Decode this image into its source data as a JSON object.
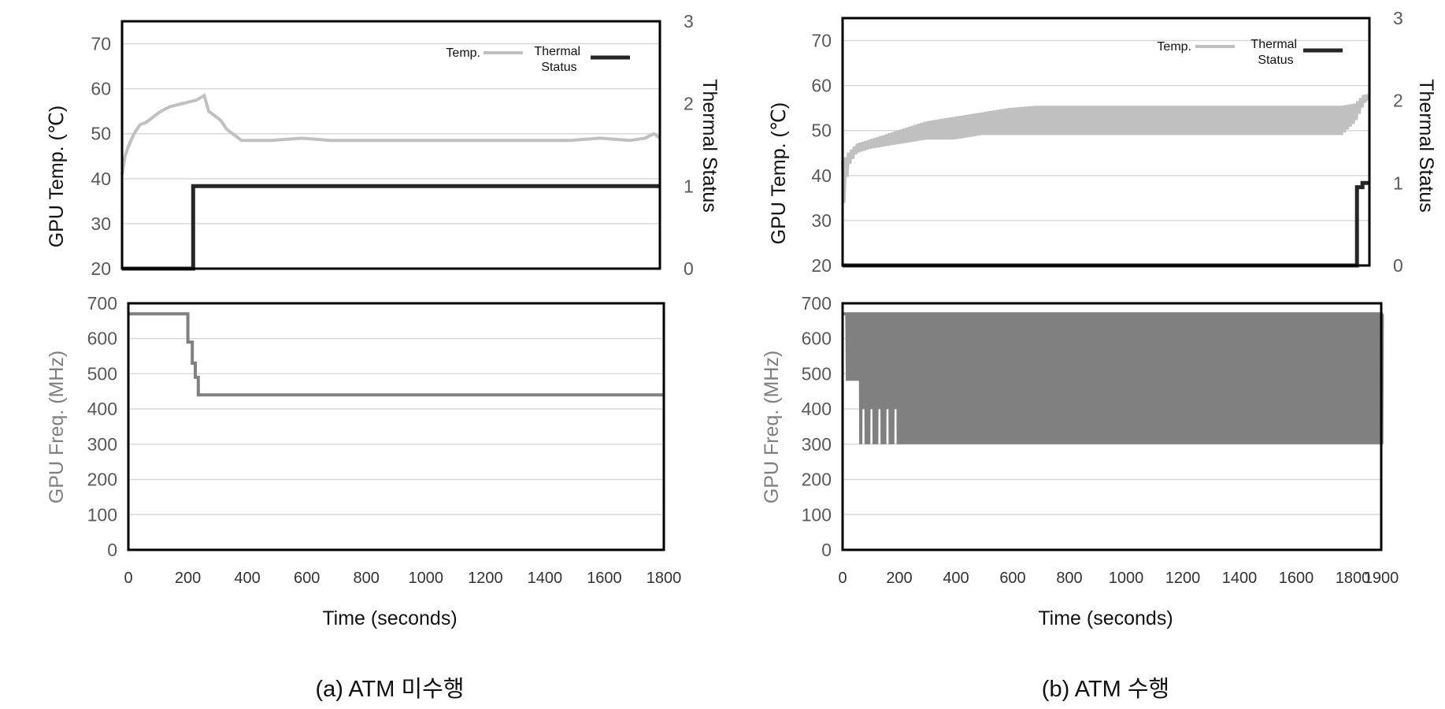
{
  "captions": {
    "left": "(a) ATM 미수행",
    "right": "(b) ATM 수행"
  },
  "colors": {
    "temp": "#c0c0c0",
    "thermal": "#262626",
    "freq": "#808080",
    "grid": "#d9d9d9",
    "frame": "#000000"
  },
  "chart_data": [
    {
      "id": "a-temp",
      "type": "line",
      "xlabel": "",
      "ylabel": "GPU Temp. (℃)",
      "y2label": "Thermal Status",
      "ylim": [
        20,
        75
      ],
      "yticks": [
        20,
        30,
        40,
        50,
        60,
        70
      ],
      "y2lim": [
        0,
        3
      ],
      "y2ticks": [
        0,
        1,
        2,
        3
      ],
      "xlim": [
        0,
        1800
      ],
      "grid": true,
      "legend_position": "top-right",
      "legend": [
        "Temp.",
        "Thermal Status"
      ],
      "series": [
        {
          "name": "Temp.",
          "axis": "left",
          "x": [
            0,
            10,
            20,
            40,
            60,
            80,
            100,
            130,
            160,
            190,
            220,
            250,
            275,
            290,
            310,
            330,
            350,
            380,
            400,
            450,
            500,
            600,
            700,
            800,
            900,
            1000,
            1100,
            1200,
            1300,
            1400,
            1500,
            1600,
            1700,
            1750,
            1780,
            1800
          ],
          "y": [
            41,
            45,
            47,
            50,
            52,
            52.5,
            53.5,
            55,
            56,
            56.5,
            57,
            57.5,
            58.5,
            55,
            54,
            53,
            51,
            49.5,
            48.5,
            48.5,
            48.5,
            49,
            48.5,
            48.5,
            48.5,
            48.5,
            48.5,
            48.5,
            48.5,
            48.5,
            48.5,
            49,
            48.5,
            49,
            50,
            49
          ]
        },
        {
          "name": "Thermal Status",
          "axis": "right",
          "step": true,
          "x": [
            0,
            238,
            238,
            1800
          ],
          "y": [
            0,
            0,
            1,
            1
          ]
        }
      ]
    },
    {
      "id": "a-freq",
      "type": "line",
      "xlabel": "Time (seconds)",
      "ylabel": "GPU Freq. (MHz)",
      "ylim": [
        0,
        700
      ],
      "yticks": [
        0,
        100,
        200,
        300,
        400,
        500,
        600,
        700
      ],
      "xlim": [
        0,
        1800
      ],
      "xticks": [
        0,
        200,
        400,
        600,
        800,
        1000,
        1200,
        1400,
        1600,
        1800
      ],
      "grid": true,
      "series": [
        {
          "name": "",
          "step": true,
          "x": [
            0,
            200,
            200,
            215,
            215,
            225,
            225,
            235,
            235,
            1800
          ],
          "y": [
            670,
            670,
            590,
            590,
            530,
            530,
            490,
            490,
            440,
            440
          ]
        }
      ]
    },
    {
      "id": "b-temp",
      "type": "line",
      "xlabel": "",
      "ylabel": "GPU Temp. (℃)",
      "y2label": "Thermal Status",
      "ylim": [
        20,
        75
      ],
      "yticks": [
        20,
        30,
        40,
        50,
        60,
        70
      ],
      "y2lim": [
        0,
        3
      ],
      "y2ticks": [
        0,
        1,
        2,
        3
      ],
      "xlim": [
        0,
        1900
      ],
      "grid": true,
      "legend_position": "top-right",
      "legend": [
        "Temp.",
        "Thermal Status"
      ],
      "series": [
        {
          "name": "Temp.",
          "axis": "left",
          "pattern": "oscillating",
          "x": [
            0,
            20,
            50,
            100,
            200,
            300,
            400,
            500,
            600,
            700,
            800,
            900,
            1000,
            1200,
            1400,
            1600,
            1800,
            1850,
            1880,
            1900
          ],
          "y_low": [
            31,
            42,
            45,
            46,
            47,
            48,
            48,
            49,
            49,
            49,
            49,
            49,
            49,
            49,
            49,
            49,
            49,
            52,
            56,
            57
          ],
          "y_high": [
            43,
            45,
            47,
            48,
            50,
            52,
            53,
            54,
            55,
            55.5,
            55.5,
            55.5,
            55.5,
            55.5,
            55.5,
            55.5,
            55.5,
            56,
            58,
            58
          ]
        },
        {
          "name": "Thermal Status",
          "axis": "right",
          "step": true,
          "x": [
            0,
            1855,
            1855,
            1875,
            1875,
            1900
          ],
          "y": [
            0,
            0,
            0.95,
            0.95,
            1,
            1
          ]
        }
      ]
    },
    {
      "id": "b-freq",
      "type": "line",
      "xlabel": "Time (seconds)",
      "ylabel": "GPU Freq. (MHz)",
      "ylim": [
        0,
        700
      ],
      "yticks": [
        0,
        100,
        200,
        300,
        400,
        500,
        600,
        700
      ],
      "xlim": [
        0,
        1900
      ],
      "xticks": [
        0,
        200,
        400,
        600,
        800,
        1000,
        1200,
        1400,
        1600,
        1800,
        1900
      ],
      "grid": true,
      "series": [
        {
          "name": "",
          "pattern": "oscillating",
          "high": 670,
          "lows": [
            {
              "x": [
                20,
                500
              ],
              "y": 300,
              "note_levels": [
                480,
                400,
                300
              ]
            },
            {
              "x": [
                500,
                1900
              ],
              "y": 300
            }
          ]
        }
      ]
    }
  ]
}
